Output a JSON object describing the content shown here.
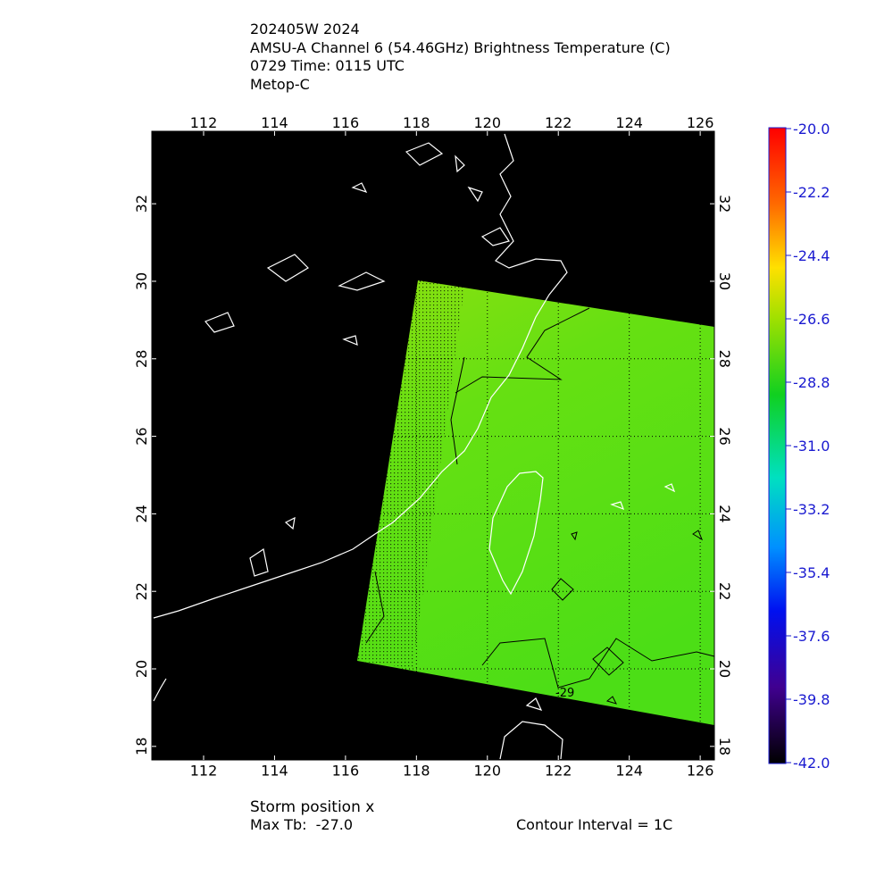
{
  "header": {
    "lines": [
      "202405W 2024",
      "AMSU-A Channel 6 (54.46GHz) Brightness Temperature (C)",
      "0729 Time: 0115 UTC",
      "Metop-C"
    ]
  },
  "map": {
    "lon_range": [
      110.54,
      126.4
    ],
    "lat_range": [
      17.65,
      33.87
    ],
    "lon_ticks": [
      112,
      114,
      116,
      118,
      120,
      122,
      124,
      126
    ],
    "lat_ticks": [
      18,
      20,
      22,
      24,
      26,
      28,
      30,
      32
    ],
    "contour_label": "-29"
  },
  "colorbar": {
    "range": [
      -42,
      -20
    ],
    "ticks": [
      {
        "value": -20,
        "label": "-20.0"
      },
      {
        "value": -22.2,
        "label": "-22.2"
      },
      {
        "value": -24.4,
        "label": "-24.4"
      },
      {
        "value": -26.6,
        "label": "-26.6"
      },
      {
        "value": -28.8,
        "label": "-28.8"
      },
      {
        "value": -31,
        "label": "-31.0"
      },
      {
        "value": -33.2,
        "label": "-33.2"
      },
      {
        "value": -35.4,
        "label": "-35.4"
      },
      {
        "value": -37.6,
        "label": "-37.6"
      },
      {
        "value": -39.8,
        "label": "-39.8"
      },
      {
        "value": -42,
        "label": "-42.0"
      }
    ]
  },
  "footer": {
    "storm_position": "Storm position x",
    "max_tb": "Max Tb:  -27.0",
    "contour_interval": "Contour Interval = 1C"
  }
}
